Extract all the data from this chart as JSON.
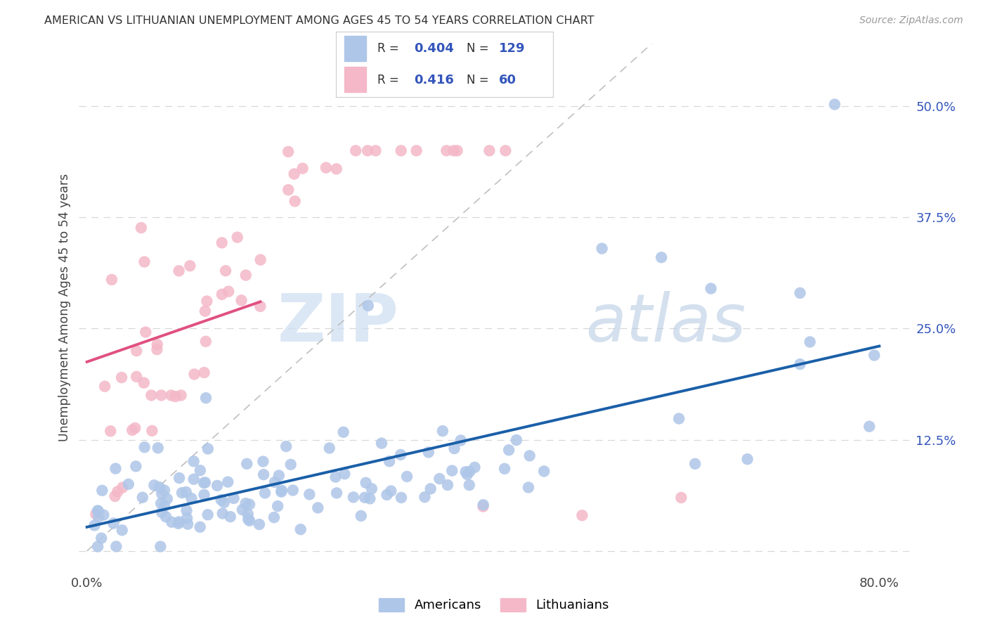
{
  "title": "AMERICAN VS LITHUANIAN UNEMPLOYMENT AMONG AGES 45 TO 54 YEARS CORRELATION CHART",
  "source": "Source: ZipAtlas.com",
  "ylabel": "Unemployment Among Ages 45 to 54 years",
  "xlim": [
    0.0,
    0.8
  ],
  "ylim": [
    0.0,
    0.55
  ],
  "x_ticks": [
    0.0,
    0.2,
    0.4,
    0.6,
    0.8
  ],
  "x_tick_labels": [
    "0.0%",
    "",
    "",
    "",
    "80.0%"
  ],
  "y_ticks_right": [
    0.0,
    0.125,
    0.25,
    0.375,
    0.5
  ],
  "y_tick_labels_right": [
    "",
    "12.5%",
    "25.0%",
    "37.5%",
    "50.0%"
  ],
  "american_color": "#aec6e8",
  "lithuanian_color": "#f4b8c8",
  "american_line_color": "#1a5fa8",
  "lithuanian_line_color": "#e05080",
  "legend_R_american": "0.404",
  "legend_N_american": "129",
  "legend_R_lithuanian": "0.416",
  "legend_N_lithuanian": "60",
  "background_color": "#ffffff",
  "grid_color": "#d8d8d8",
  "watermark_zip_color": "#dce8f5",
  "watermark_atlas_color": "#c8daf0"
}
